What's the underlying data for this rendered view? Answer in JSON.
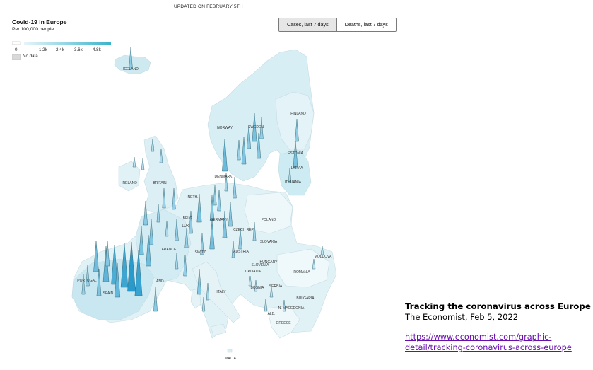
{
  "header": {
    "updated": "UPDATED ON FEBRUARY 5TH"
  },
  "map": {
    "title": "Covid-19 in Europe",
    "subtitle": "Per 100,000 people",
    "legend": {
      "ticks": [
        "0",
        "1.2k",
        "2.4k",
        "3.6k",
        "4.8k"
      ],
      "no_data_label": "No data",
      "color_low": "#e6f5f9",
      "color_high": "#3ab3cc",
      "no_data_color": "#d9d9d9"
    },
    "toggle": {
      "options": [
        "Cases, last 7 days",
        "Deaths, last 7 days"
      ],
      "selected": "Cases, last 7 days"
    },
    "country_labels": [
      "ICELAND",
      "NORWAY",
      "SWEDEN",
      "FINLAND",
      "ESTONIA",
      "LATVIA",
      "LITHUANIA",
      "DENMARK",
      "IRELAND",
      "BRITAIN",
      "NETH.",
      "BELG.",
      "LUX.",
      "GERMANY",
      "POLAND",
      "CZECH REP.",
      "SLOVAKIA",
      "AUSTRIA",
      "HUNGARY",
      "SWITZ.",
      "FRANCE",
      "SLOVENIA",
      "CROATIA",
      "BOSNIA",
      "SERBIA",
      "ROMANIA",
      "MOLDOVA",
      "BULGARIA",
      "N. MACEDONIA",
      "ALB.",
      "GREECE",
      "ITALY",
      "SPAIN",
      "PORTUGAL",
      "AND.",
      "MALTA"
    ]
  },
  "caption": {
    "title": "Tracking the coronavirus across Europe",
    "source": "The Economist, Feb 5, 2022",
    "link": "https://www.economist.com/graphic-detail/tracking-coronavirus-across-europe"
  }
}
